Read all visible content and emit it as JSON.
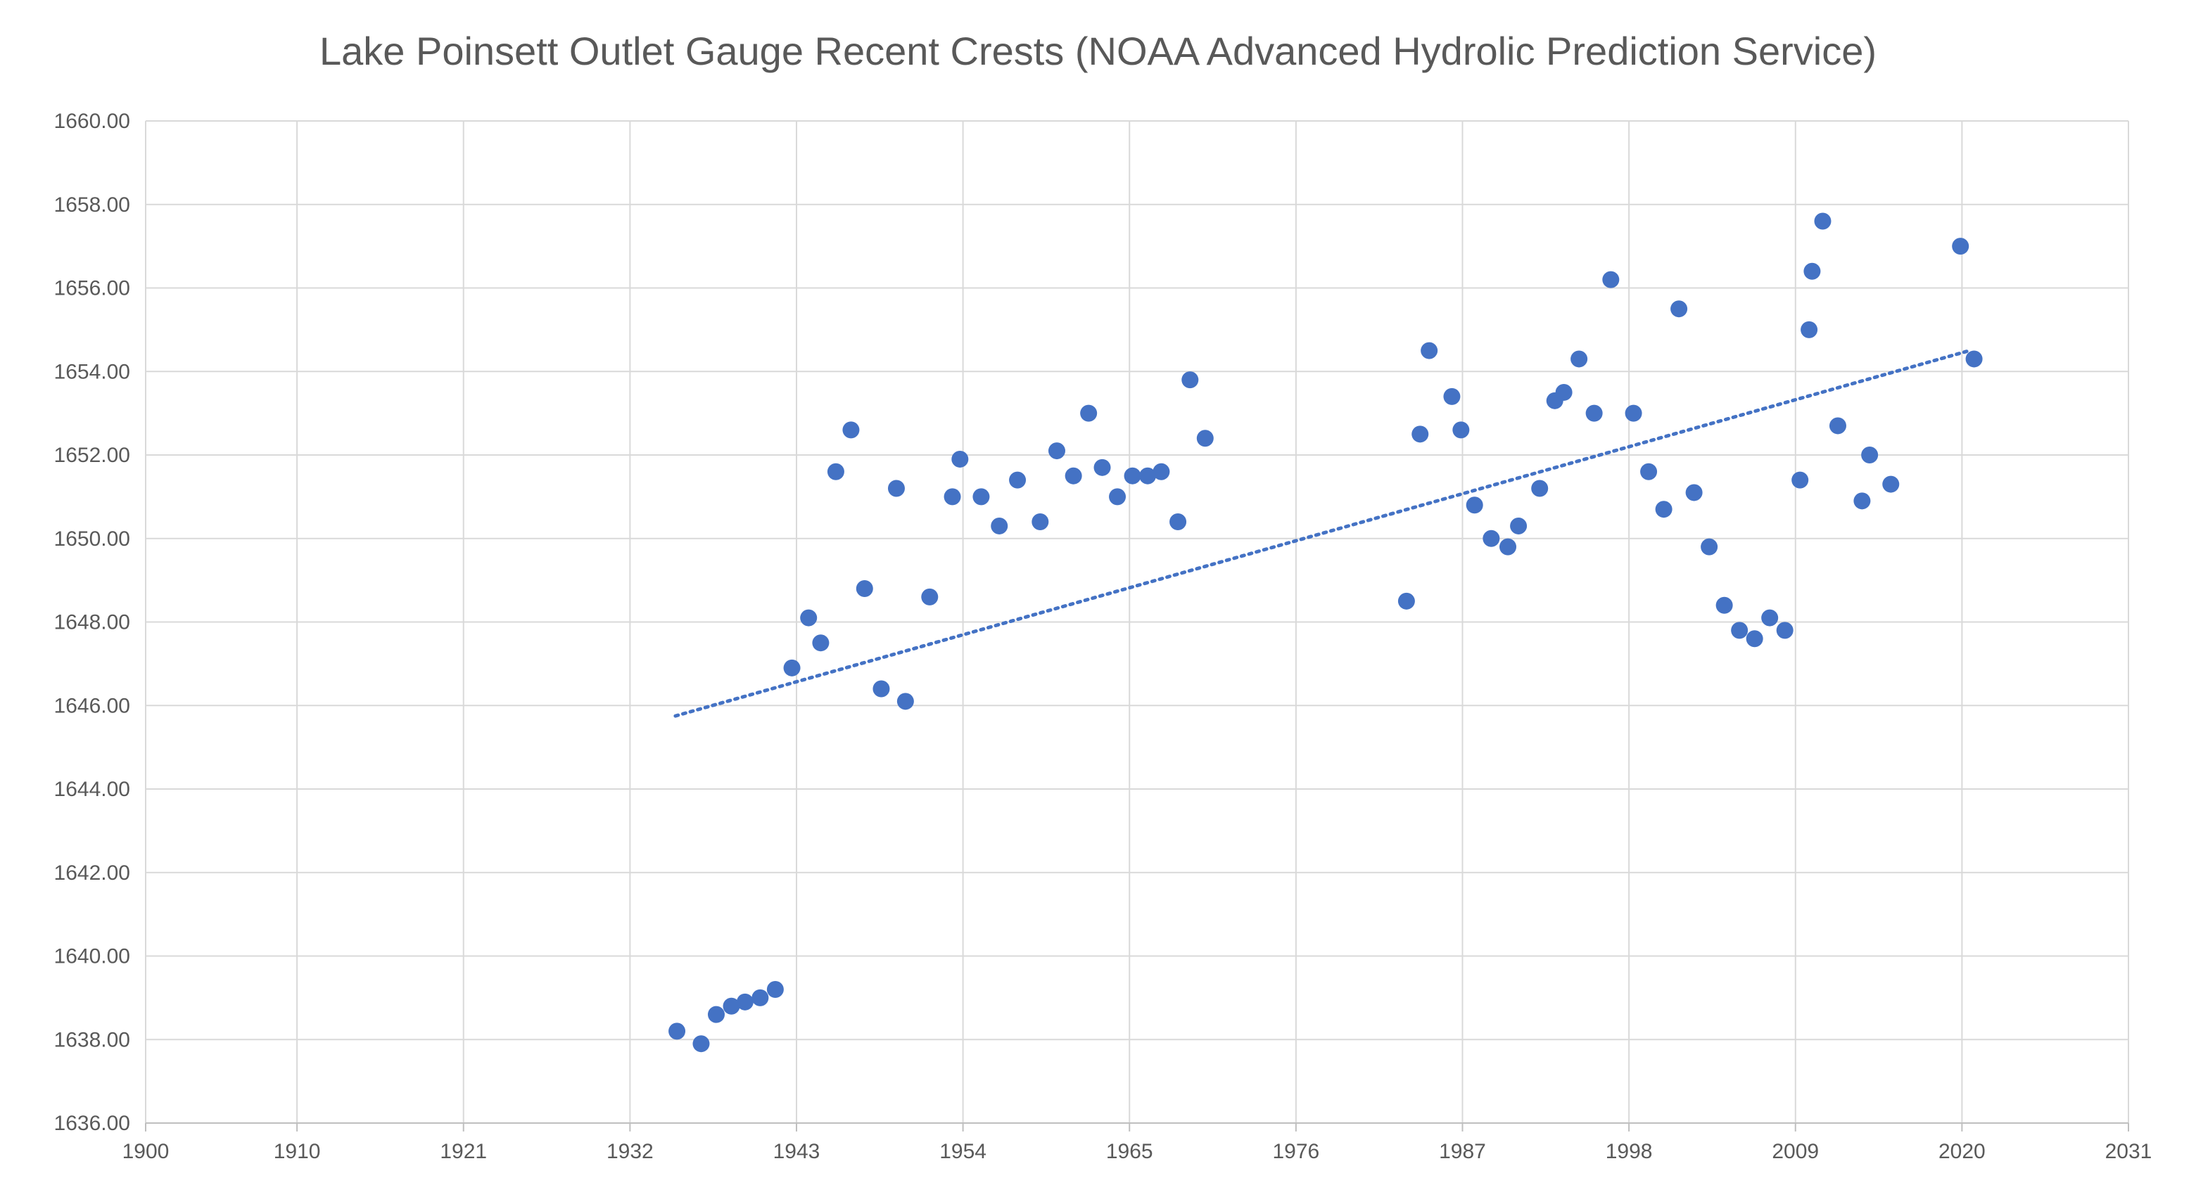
{
  "chart_data": {
    "type": "scatter",
    "title": "Lake Poinsett Outlet Gauge Recent Crests (NOAA Advanced Hydrolic Prediction Service)",
    "xlabel": "",
    "ylabel": "",
    "xlim": [
      1900,
      2031
    ],
    "ylim": [
      1636,
      1660
    ],
    "x_ticks": [
      1900,
      1910,
      1921,
      1932,
      1943,
      1954,
      1965,
      1976,
      1987,
      1998,
      2009,
      2020,
      2031
    ],
    "y_ticks": [
      "1636.00",
      "1638.00",
      "1640.00",
      "1642.00",
      "1644.00",
      "1646.00",
      "1648.00",
      "1650.00",
      "1652.00",
      "1654.00",
      "1656.00",
      "1658.00",
      "1660.00"
    ],
    "grid": true,
    "legend": "none",
    "marker_color": "#4472C4",
    "series": [
      {
        "x": [
          1935.1,
          1936.7,
          1937.7,
          1938.7,
          1939.6,
          1940.6,
          1941.6,
          1942.7,
          1943.8,
          1944.6,
          1945.6,
          1946.6,
          1947.5,
          1948.6,
          1949.6,
          1950.2,
          1951.8,
          1953.3,
          1953.8,
          1955.2,
          1956.4,
          1957.6,
          1959.1,
          1960.2,
          1961.3,
          1962.3,
          1963.2,
          1964.2,
          1965.2,
          1966.2,
          1967.1,
          1968.2,
          1969.0,
          1970.0,
          1983.3,
          1984.2,
          1984.8,
          1986.3,
          1986.9,
          1987.8,
          1988.9,
          1990.0,
          1990.7,
          1992.1,
          1993.1,
          1993.7,
          1994.7,
          1995.7,
          1996.8,
          1998.3,
          1999.3,
          2000.3,
          2001.3,
          2002.3,
          2003.3,
          2004.3,
          2005.3,
          2006.3,
          2007.3,
          2008.3,
          2009.3,
          2009.9,
          2010.1,
          2010.8,
          2011.8,
          2013.4,
          2013.9,
          2015.3,
          2019.9,
          2020.8
        ],
        "y": [
          1638.2,
          1637.9,
          1638.6,
          1638.8,
          1638.9,
          1639.0,
          1639.2,
          1646.9,
          1648.1,
          1647.5,
          1651.6,
          1652.6,
          1648.8,
          1646.4,
          1651.2,
          1646.1,
          1648.6,
          1651.0,
          1651.9,
          1651.0,
          1650.3,
          1651.4,
          1650.4,
          1652.1,
          1651.5,
          1653.0,
          1651.7,
          1651.0,
          1651.5,
          1651.5,
          1651.6,
          1650.4,
          1653.8,
          1652.4,
          1648.5,
          1652.5,
          1654.5,
          1653.4,
          1652.6,
          1650.8,
          1650.0,
          1649.8,
          1650.3,
          1651.2,
          1653.3,
          1653.5,
          1654.3,
          1653.0,
          1656.2,
          1653.0,
          1651.6,
          1650.7,
          1655.5,
          1651.1,
          1649.8,
          1648.4,
          1647.8,
          1647.6,
          1648.1,
          1647.8,
          1651.4,
          1655.0,
          1656.4,
          1657.6,
          1652.7,
          1650.9,
          1652.0,
          1651.3,
          1657.0,
          1654.3
        ]
      }
    ],
    "trendline": {
      "type": "linear",
      "style": "dotted",
      "color": "#4472C4",
      "x": [
        1935,
        2020.5
      ],
      "y": [
        1645.75,
        1654.5
      ]
    }
  }
}
